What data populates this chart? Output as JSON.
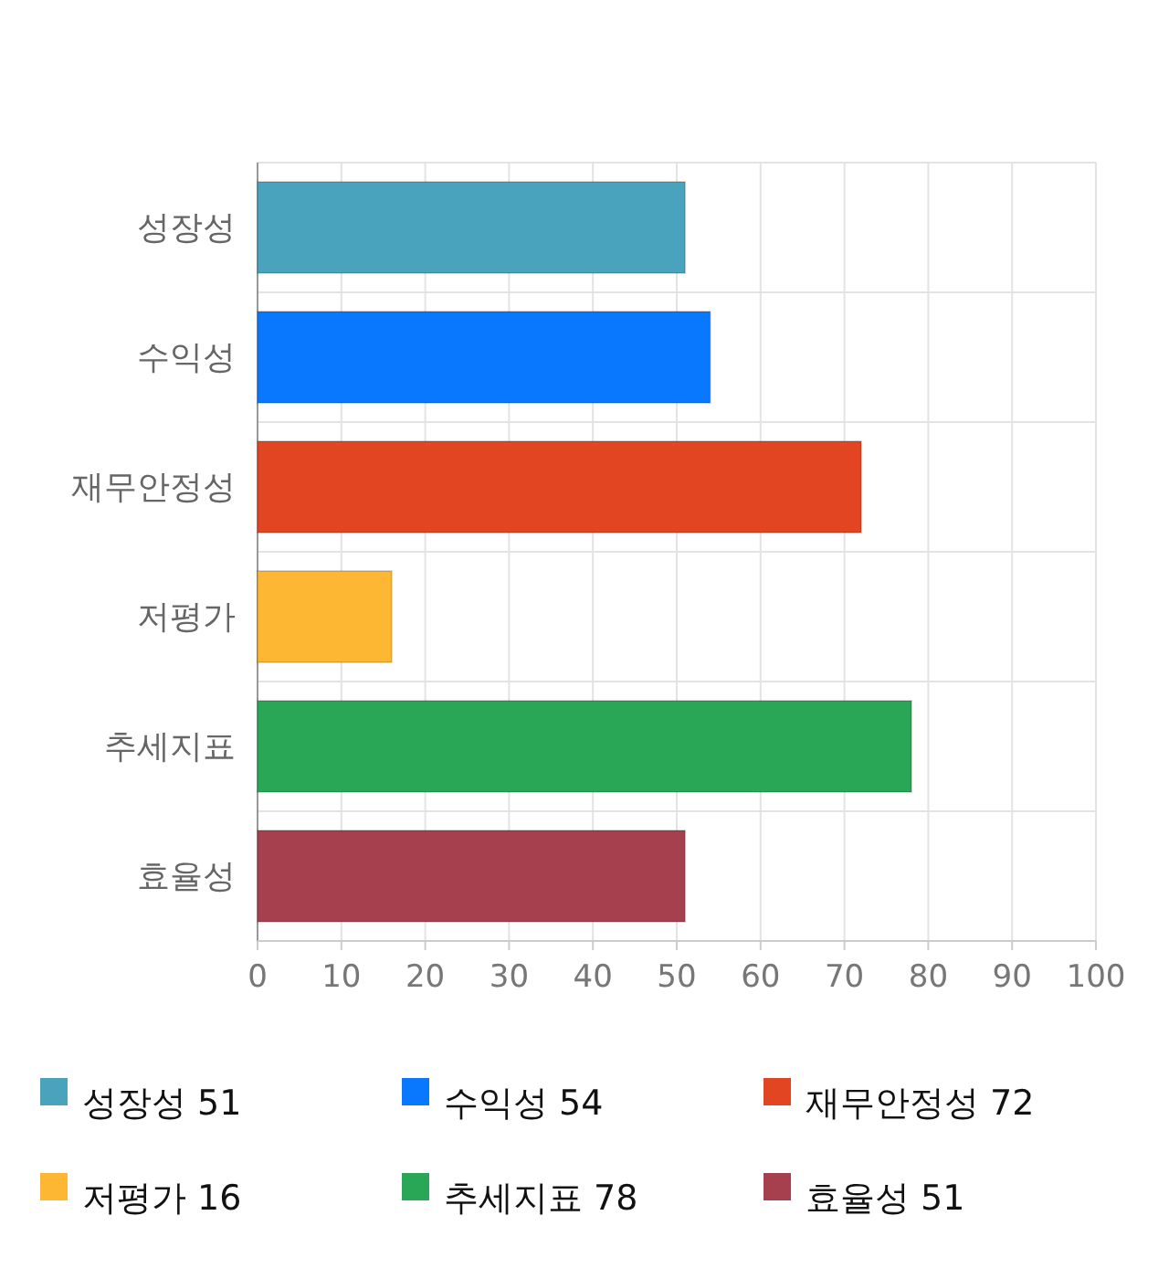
{
  "chart_data": {
    "type": "bar",
    "orientation": "horizontal",
    "categories": [
      "성장성",
      "수익성",
      "재무안정성",
      "저평가",
      "추세지표",
      "효율성"
    ],
    "series": [
      {
        "name": "성장성 51",
        "color": "#4aa3bc",
        "values": [
          51,
          null,
          null,
          null,
          null,
          null
        ]
      },
      {
        "name": "수익성 54",
        "color": "#0a77ff",
        "values": [
          null,
          54,
          null,
          null,
          null,
          null
        ]
      },
      {
        "name": "재무안정성 72",
        "color": "#e24522",
        "values": [
          null,
          null,
          72,
          null,
          null,
          null
        ]
      },
      {
        "name": "저평가 16",
        "color": "#fdb733",
        "values": [
          null,
          null,
          null,
          16,
          null,
          null
        ]
      },
      {
        "name": "추세지표 78",
        "color": "#29a656",
        "values": [
          null,
          null,
          null,
          null,
          78,
          null
        ]
      },
      {
        "name": "효율성 51",
        "color": "#a6404f",
        "values": [
          null,
          null,
          null,
          null,
          null,
          51
        ]
      }
    ],
    "xlim": [
      0,
      100
    ],
    "xticks": [
      0,
      10,
      20,
      30,
      40,
      50,
      60,
      70,
      80,
      90,
      100
    ],
    "grid": true,
    "legend": "bottom"
  }
}
